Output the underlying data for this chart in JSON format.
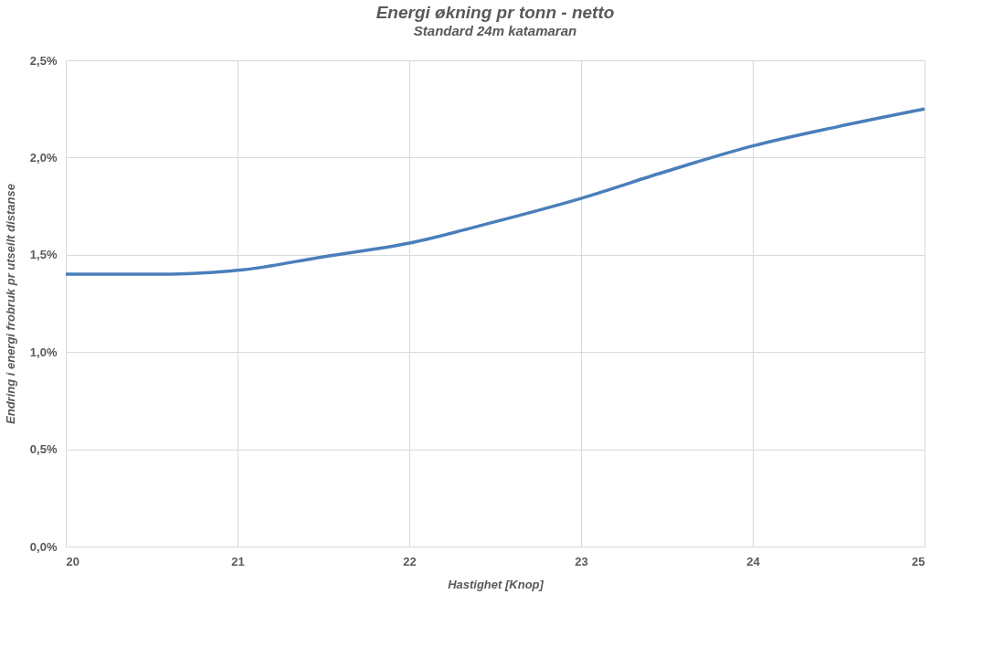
{
  "chart_data": {
    "type": "line",
    "title": "Energi økning pr tonn - netto",
    "subtitle": "Standard 24m katamaran",
    "xlabel": "Hastighet [Knop]",
    "ylabel": "Endring i energi frobruk pr utseilt distanse",
    "x": [
      20,
      20.5,
      21,
      21.5,
      22,
      22.5,
      23,
      23.5,
      24,
      24.5,
      25
    ],
    "series": [
      {
        "color": "#4a7ebb",
        "values": [
          1.4,
          1.4,
          1.42,
          1.49,
          1.56,
          1.67,
          1.79,
          1.93,
          2.06,
          2.16,
          2.25
        ]
      }
    ],
    "xlim": [
      20,
      25
    ],
    "ylim": [
      0,
      2.5
    ],
    "xticks": [
      20,
      21,
      22,
      23,
      24,
      25
    ],
    "yticks": [
      {
        "value": 0,
        "label": "0,0%"
      },
      {
        "value": 0.5,
        "label": "0,5%"
      },
      {
        "value": 1,
        "label": "1,0%"
      },
      {
        "value": 1.5,
        "label": "1,5%"
      },
      {
        "value": 2,
        "label": "2,0%"
      },
      {
        "value": 2.5,
        "label": "2,5%"
      }
    ],
    "grid": true
  }
}
